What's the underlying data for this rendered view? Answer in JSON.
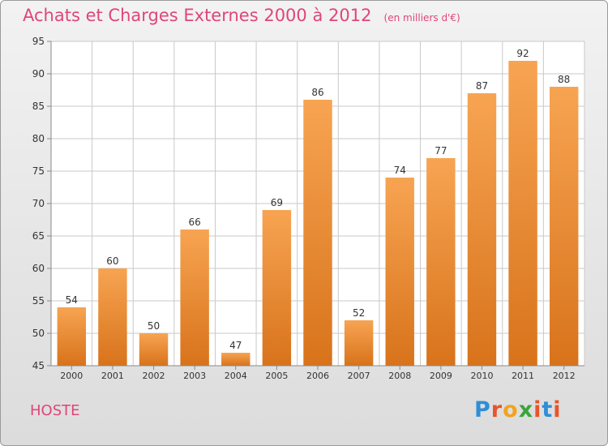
{
  "chart_data": {
    "type": "bar",
    "title": "Achats et Charges Externes 2000 à 2012",
    "subtitle": "(en milliers d'€)",
    "categories": [
      "2000",
      "2001",
      "2002",
      "2003",
      "2004",
      "2005",
      "2006",
      "2007",
      "2008",
      "2009",
      "2010",
      "2011",
      "2012"
    ],
    "values": [
      54,
      60,
      50,
      66,
      47,
      69,
      86,
      52,
      74,
      77,
      87,
      92,
      88
    ],
    "data_labels": [
      "54",
      "60",
      "50",
      "66",
      "47",
      "69",
      "86",
      "52",
      "74",
      "77",
      "87",
      "92",
      "88"
    ],
    "yticks": [
      45,
      50,
      55,
      60,
      65,
      70,
      75,
      80,
      85,
      90,
      95
    ],
    "ylim": [
      45,
      95
    ],
    "grid": true,
    "bar_color_top": "#f7a452",
    "bar_color_bottom": "#d8731b"
  },
  "footer": {
    "commune": "HOSTE",
    "logo_text": "Proxiti",
    "logo_colors": [
      "#2f8ed6",
      "#e8552a",
      "#f0a41e",
      "#3aa53a",
      "#e8552a",
      "#2f8ed6",
      "#e8552a"
    ]
  },
  "colors": {
    "title": "#e0457a",
    "grid": "#c9c9c9",
    "axis": "#8a8a8a",
    "text": "#333333"
  }
}
